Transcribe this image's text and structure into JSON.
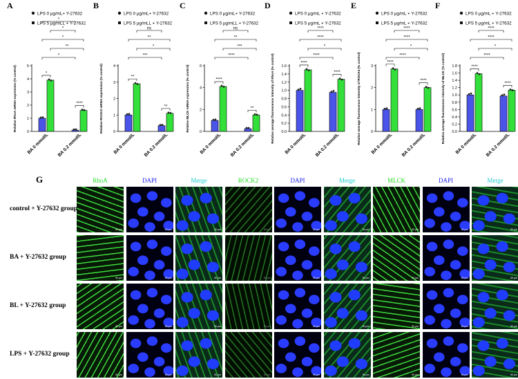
{
  "figure": {
    "panel_letters": [
      "A",
      "B",
      "C",
      "D",
      "E",
      "F",
      "G"
    ],
    "bar_colors": {
      "group1": "#4a54e8",
      "group2": "#33e03a"
    },
    "groups": [
      "BA 0 mmol/L",
      "BA 0.2 mmol/L"
    ]
  },
  "chart_data": [
    {
      "type": "bar",
      "panel": "A",
      "ylabel": "Relative RhoA mRNA expression (% control)",
      "categories": [
        "BA 0 mmol/L",
        "BA 0.2 mmol/L"
      ],
      "series": [
        {
          "name": "LPS 0 μg/mL+ Y-27632",
          "values": [
            1.0,
            0.1
          ]
        },
        {
          "name": "LPS 5 μg/mLL + Y-27632",
          "values": [
            3.9,
            1.6
          ]
        }
      ],
      "ylim": [
        0,
        5
      ],
      "yticks": [
        "0",
        "1",
        "2",
        "3",
        "4",
        "5"
      ],
      "legend_labels": [
        "LPS 0 μg/mL+ Y-27632",
        "LPS 5 μg/mLL + Y-27632"
      ],
      "inner_sig": [
        "*",
        "****"
      ],
      "brackets": [
        "*",
        "**",
        "*",
        "*",
        "*"
      ]
    },
    {
      "type": "bar",
      "panel": "B",
      "ylabel": "Relative ROCK2 mRNA expression (% control)",
      "categories": [
        "BA 0 mmol/L",
        "BA 0.2 mmol/L"
      ],
      "series": [
        {
          "name": "LPS 0 μg/mL+ Y-27632",
          "values": [
            1.0,
            0.35
          ]
        },
        {
          "name": "LPS 5 μg/mLL + Y-27632",
          "values": [
            2.9,
            1.1
          ]
        }
      ],
      "ylim": [
        0,
        4
      ],
      "yticks": [
        "0",
        "1",
        "2",
        "3",
        "4"
      ],
      "legend_labels": [
        "LPS 0 μg/mL+ Y-27632",
        "LPS 5 μg/mLL + Y-27632"
      ],
      "inner_sig": [
        "**",
        "**"
      ],
      "brackets": [
        "***",
        "*",
        "**",
        "ns"
      ]
    },
    {
      "type": "bar",
      "panel": "C",
      "ylabel": "Relative MLCK mRNA expression (% control)",
      "categories": [
        "BA 0 mmol/L",
        "BA 0.2 mmol/L"
      ],
      "series": [
        {
          "name": "LPS 0 μg/mL+ Y-27632",
          "values": [
            1.0,
            0.25
          ]
        },
        {
          "name": "LPS 5 μg/mLL + Y-27632",
          "values": [
            4.1,
            1.5
          ]
        }
      ],
      "ylim": [
        0,
        6
      ],
      "yticks": [
        "0",
        "2",
        "4",
        "6"
      ],
      "legend_labels": [
        "LPS 0 μg/mL+ Y-27632",
        "LPS 5 μg/mLL + Y-27632"
      ],
      "inner_sig": [
        "****",
        "**"
      ],
      "brackets": [
        "****",
        "***",
        "**",
        "ns"
      ]
    },
    {
      "type": "bar",
      "panel": "D",
      "ylabel": "Relative average fluorescence intensity of RhoA (% control)",
      "categories": [
        "BA 0 mmol/L",
        "BA 0.2 mmol/L"
      ],
      "series": [
        {
          "name": "LPS 0 μg/mL + Y-27632",
          "values": [
            1.0,
            0.95
          ]
        },
        {
          "name": "LPS 5 μg/mL + Y-27632",
          "values": [
            1.5,
            1.27
          ]
        }
      ],
      "ylim": [
        0,
        1.6
      ],
      "yticks": [
        "0.0",
        "0.2",
        "0.4",
        "0.6",
        "0.8",
        "1.0",
        "1.2",
        "1.4",
        "1.6"
      ],
      "legend_labels": [
        "LPS 0 μg/mL + Y-27632",
        "LPS 5 μg/mL + Y-27632"
      ],
      "inner_sig": [
        "****",
        "****"
      ],
      "brackets": [
        "****",
        "*",
        "****",
        "****"
      ]
    },
    {
      "type": "bar",
      "panel": "E",
      "ylabel": "Relative average fluorescence intensity of ROCK2 (% control)",
      "categories": [
        "BA 0 mmol/L",
        "BA 0.2 mmol/L"
      ],
      "series": [
        {
          "name": "LPS 0 μg/mL + Y-27632",
          "values": [
            1.0,
            1.0
          ]
        },
        {
          "name": "LPS 5 μg/mL + Y-27632",
          "values": [
            2.85,
            2.0
          ]
        }
      ],
      "ylim": [
        0,
        3
      ],
      "yticks": [
        "0",
        "1",
        "2",
        "3"
      ],
      "legend_labels": [
        "LPS 0 μg/mL + Y-27632",
        "LPS 5 μg/mL + Y-27632"
      ],
      "inner_sig": [
        "****",
        "****"
      ],
      "brackets": [
        "****",
        "*",
        "****",
        "****"
      ]
    },
    {
      "type": "bar",
      "panel": "F",
      "ylabel": "Relative average fluorescence intensity of MLCK (% control)",
      "categories": [
        "BA 0 mmol/L",
        "BA 0.2 mmol/L"
      ],
      "series": [
        {
          "name": "LPS 0 μg/mL + Y-27632",
          "values": [
            1.0,
            0.97
          ]
        },
        {
          "name": "LPS 5 μg/mL + Y-27632",
          "values": [
            1.58,
            1.13
          ]
        }
      ],
      "ylim": [
        0,
        1.8
      ],
      "yticks": [
        "0.0",
        "0.2",
        "0.4",
        "0.6",
        "0.8",
        "1.0",
        "1.2",
        "1.4",
        "1.6",
        "1.8"
      ],
      "legend_labels": [
        "LPS 0 μg/mL + Y-27632",
        "LPS 5 μg/mL + Y-27632"
      ],
      "inner_sig": [
        "****",
        "****"
      ],
      "brackets": [
        "****",
        "*",
        "****",
        "****"
      ]
    }
  ],
  "microscopy": {
    "columns": [
      {
        "label": "RhoA",
        "color": "#22dd22"
      },
      {
        "label": "DAPI",
        "color": "#2020ee"
      },
      {
        "label": "Merge",
        "color": "#22cccc"
      },
      {
        "label": "ROCK2",
        "color": "#22dd22"
      },
      {
        "label": "DAPI",
        "color": "#2020ee"
      },
      {
        "label": "Merge",
        "color": "#22cccc"
      },
      {
        "label": "MLCK",
        "color": "#22dd22"
      },
      {
        "label": "DAPI",
        "color": "#2020ee"
      },
      {
        "label": "Merge",
        "color": "#22cccc"
      }
    ],
    "rows": [
      "control + Y-27632 group",
      "BA + Y-27632 group",
      "BL + Y-27632 group",
      "LPS + Y-27632 group"
    ],
    "scale_bar": "50 μm"
  }
}
